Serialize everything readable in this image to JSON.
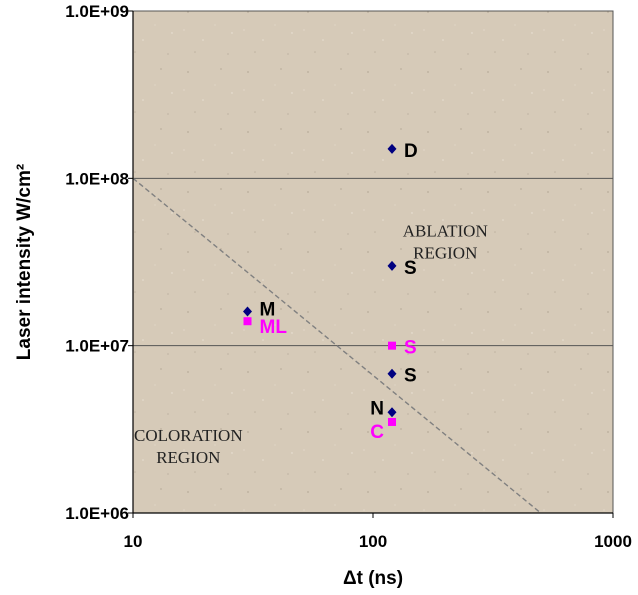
{
  "chart_data": {
    "type": "scatter",
    "title": "",
    "xlabel": "Δt (ns)",
    "ylabel": "Laser intensity  W/cm²",
    "xscale": "log",
    "yscale": "log",
    "xlim": [
      10,
      1000
    ],
    "ylim": [
      1000000,
      1000000000
    ],
    "x_tick_labels": [
      "10",
      "100",
      "1000"
    ],
    "y_tick_labels": [
      "1.0E+06",
      "1.0E+07",
      "1.0E+08",
      "1.0E+09"
    ],
    "grid": "horizontal major gridlines",
    "background_color": "#d6cab8",
    "series": [
      {
        "marker": "diamond",
        "color": "#000080",
        "points": [
          {
            "x": 120,
            "y": 150000000,
            "label": "D"
          },
          {
            "x": 120,
            "y": 30000000,
            "label": "S"
          },
          {
            "x": 30,
            "y": 16000000,
            "label": "M"
          },
          {
            "x": 120,
            "y": 6800000,
            "label": "S"
          },
          {
            "x": 120,
            "y": 4000000,
            "label": "N"
          }
        ]
      },
      {
        "marker": "square",
        "color": "#ff00ff",
        "points": [
          {
            "x": 30,
            "y": 14000000,
            "label": "ML"
          },
          {
            "x": 120,
            "y": 10000000,
            "label": "S"
          },
          {
            "x": 120,
            "y": 3500000,
            "label": "C"
          }
        ]
      }
    ],
    "threshold_line": {
      "style": "dashed",
      "color": "#808080",
      "points": [
        [
          10,
          100000000
        ],
        [
          500,
          1000000
        ]
      ]
    },
    "annotations": [
      {
        "lines": [
          "ABLATION",
          "REGION"
        ],
        "x": 200,
        "y": 45000000
      },
      {
        "lines": [
          "COLORATION",
          "REGION"
        ],
        "x": 17,
        "y": 2700000
      }
    ]
  }
}
